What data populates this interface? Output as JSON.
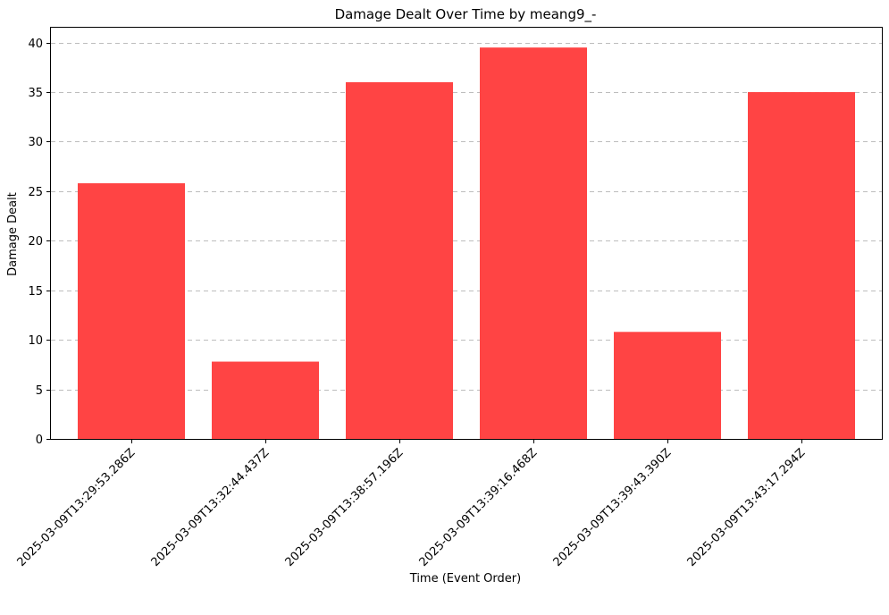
{
  "chart_data": {
    "type": "bar",
    "title": "Damage Dealt Over Time by meang9_-",
    "xlabel": "Time (Event Order)",
    "ylabel": "Damage Dealt",
    "categories": [
      "2025-03-09T13:29:53.286Z",
      "2025-03-09T13:32:44.437Z",
      "2025-03-09T13:38:57.196Z",
      "2025-03-09T13:39:16.468Z",
      "2025-03-09T13:39:43.390Z",
      "2025-03-09T13:43:17.294Z"
    ],
    "values": [
      25.8,
      7.8,
      36.0,
      39.5,
      10.8,
      35.0
    ],
    "ylim": [
      0,
      41.5
    ],
    "yticks": [
      0,
      5,
      10,
      15,
      20,
      25,
      30,
      35,
      40
    ],
    "grid": "y",
    "legend": "none",
    "bar_color": "#ff4444"
  }
}
